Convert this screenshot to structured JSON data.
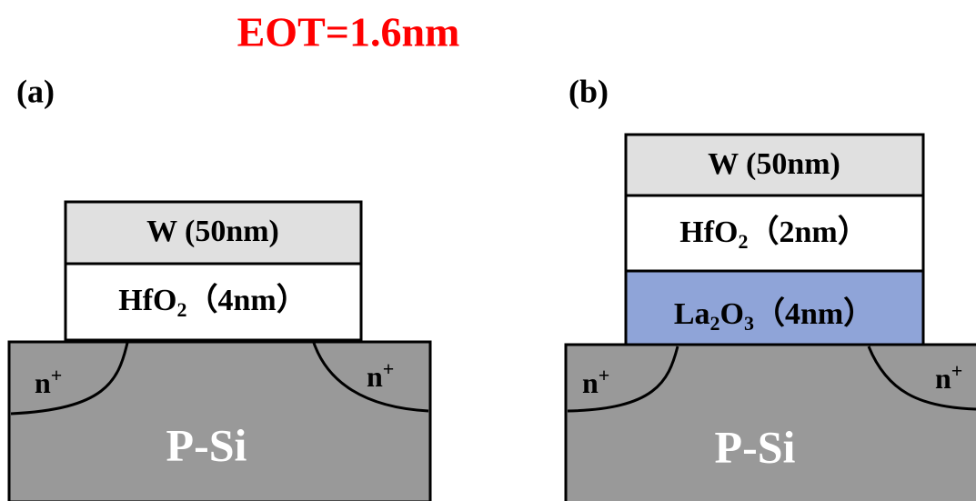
{
  "title": "EOT=1.6nm",
  "panels": [
    {
      "label": "(a)",
      "layers": [
        {
          "text": [
            "W (50nm)"
          ]
        },
        {
          "text": [
            "HfO",
            "2",
            "（4nm）"
          ]
        }
      ],
      "doping_left": [
        "n",
        "+"
      ],
      "doping_right": [
        "n",
        "+"
      ],
      "substrate": "P-Si"
    },
    {
      "label": "(b)",
      "layers": [
        {
          "text": [
            "W (50nm)"
          ]
        },
        {
          "text": [
            "HfO",
            "2",
            "（2nm）"
          ]
        },
        {
          "text": [
            "La",
            "2",
            "O",
            "3",
            "（4nm）"
          ]
        }
      ],
      "doping_left": [
        "n",
        "+"
      ],
      "doping_right": [
        "n",
        "+"
      ],
      "substrate": "P-Si"
    }
  ]
}
